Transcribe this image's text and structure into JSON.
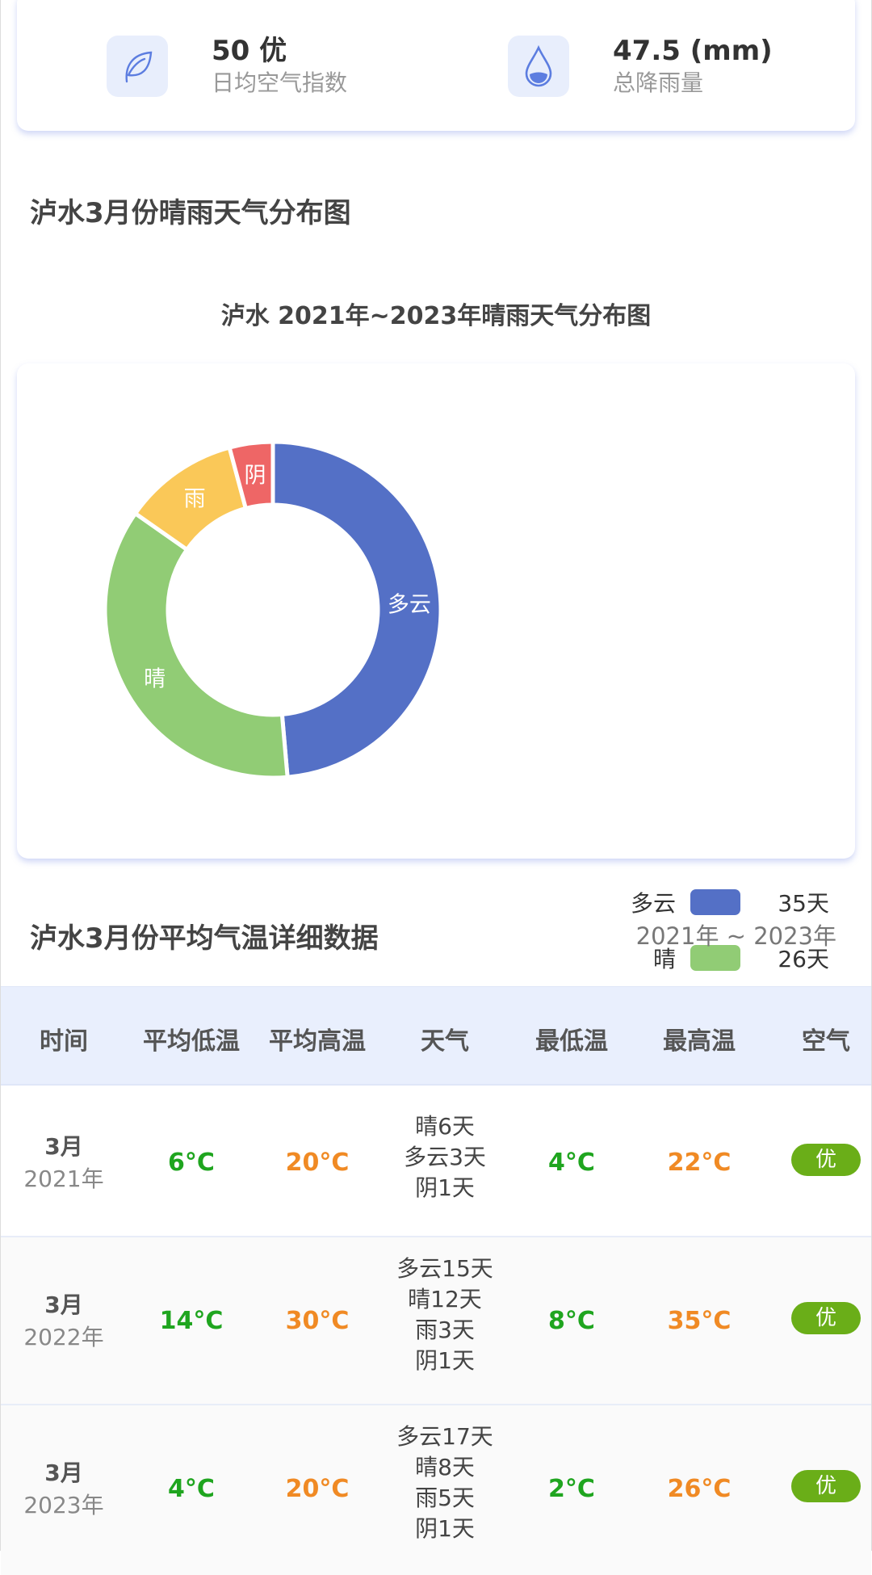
{
  "summary": {
    "aqi_value": "50 优",
    "aqi_label": "日均空气指数",
    "rain_value": "47.5 (mm)",
    "rain_label": "总降雨量"
  },
  "dist_section_title": "泸水3月份晴雨天气分布图",
  "chart_data": {
    "type": "pie",
    "title": "泸水 2021年~2023年晴雨天气分布图",
    "categories": [
      "多云",
      "晴",
      "雨",
      "阴"
    ],
    "values": [
      35,
      26,
      8,
      3
    ],
    "unit": "天",
    "value_labels": [
      "35天",
      "26天",
      "8天",
      "3天"
    ],
    "colors": [
      "#5470c6",
      "#91cc75",
      "#fac858",
      "#ee6666"
    ],
    "donut": true,
    "legend": "right"
  },
  "temp_section": {
    "title": "泸水3月份平均气温详细数据",
    "range": "2021年 ~ 2023年"
  },
  "table": {
    "headers": [
      "时间",
      "平均低温",
      "平均高温",
      "天气",
      "最低温",
      "最高温",
      "空气"
    ],
    "rows": [
      {
        "month": "3月",
        "year": "2021年",
        "avg_low": "6°C",
        "avg_high": "20°C",
        "weather": [
          "晴6天",
          "多云3天",
          "阴1天"
        ],
        "min": "4°C",
        "max": "22°C",
        "air": "优"
      },
      {
        "month": "3月",
        "year": "2022年",
        "avg_low": "14°C",
        "avg_high": "30°C",
        "weather": [
          "多云15天",
          "晴12天",
          "雨3天",
          "阴1天"
        ],
        "min": "8°C",
        "max": "35°C",
        "air": "优"
      },
      {
        "month": "3月",
        "year": "2023年",
        "avg_low": "4°C",
        "avg_high": "20°C",
        "weather": [
          "多云17天",
          "晴8天",
          "雨5天",
          "阴1天"
        ],
        "min": "2°C",
        "max": "26°C",
        "air": "优"
      }
    ]
  }
}
